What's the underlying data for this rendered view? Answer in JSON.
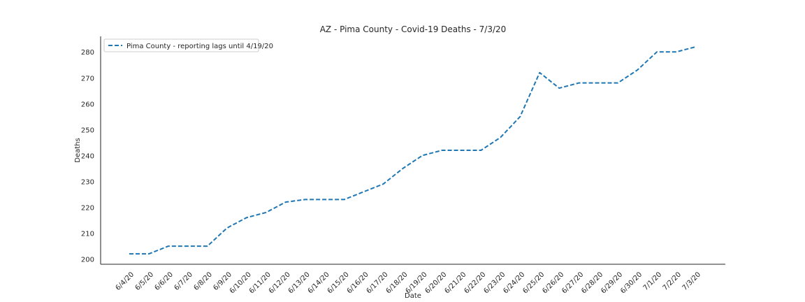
{
  "chart_data": {
    "type": "line",
    "title": "AZ - Pima County - Covid-19 Deaths - 7/3/20",
    "xlabel": "Date",
    "ylabel": "Deaths",
    "categories": [
      "6/4/20",
      "6/5/20",
      "6/6/20",
      "6/7/20",
      "6/8/20",
      "6/9/20",
      "6/10/20",
      "6/11/20",
      "6/12/20",
      "6/13/20",
      "6/14/20",
      "6/15/20",
      "6/16/20",
      "6/17/20",
      "6/18/20",
      "6/19/20",
      "6/20/20",
      "6/21/20",
      "6/22/20",
      "6/23/20",
      "6/24/20",
      "6/25/20",
      "6/26/20",
      "6/27/20",
      "6/28/20",
      "6/29/20",
      "6/30/20",
      "7/1/20",
      "7/2/20",
      "7/3/20"
    ],
    "series": [
      {
        "name": "Pima County - reporting lags until 4/19/20",
        "values": [
          202,
          202,
          205,
          205,
          205,
          212,
          216,
          218,
          222,
          223,
          223,
          223,
          226,
          229,
          235,
          240,
          242,
          242,
          242,
          247,
          255,
          272,
          266,
          268,
          268,
          268,
          273,
          280,
          280,
          282
        ],
        "color": "#1f77b4",
        "line_style": "dashed"
      }
    ],
    "ylim": [
      198,
      286
    ],
    "yticks": [
      200,
      210,
      220,
      230,
      240,
      250,
      260,
      270,
      280
    ],
    "grid": false,
    "legend_position": "upper-left",
    "axis_color": "#262626"
  }
}
